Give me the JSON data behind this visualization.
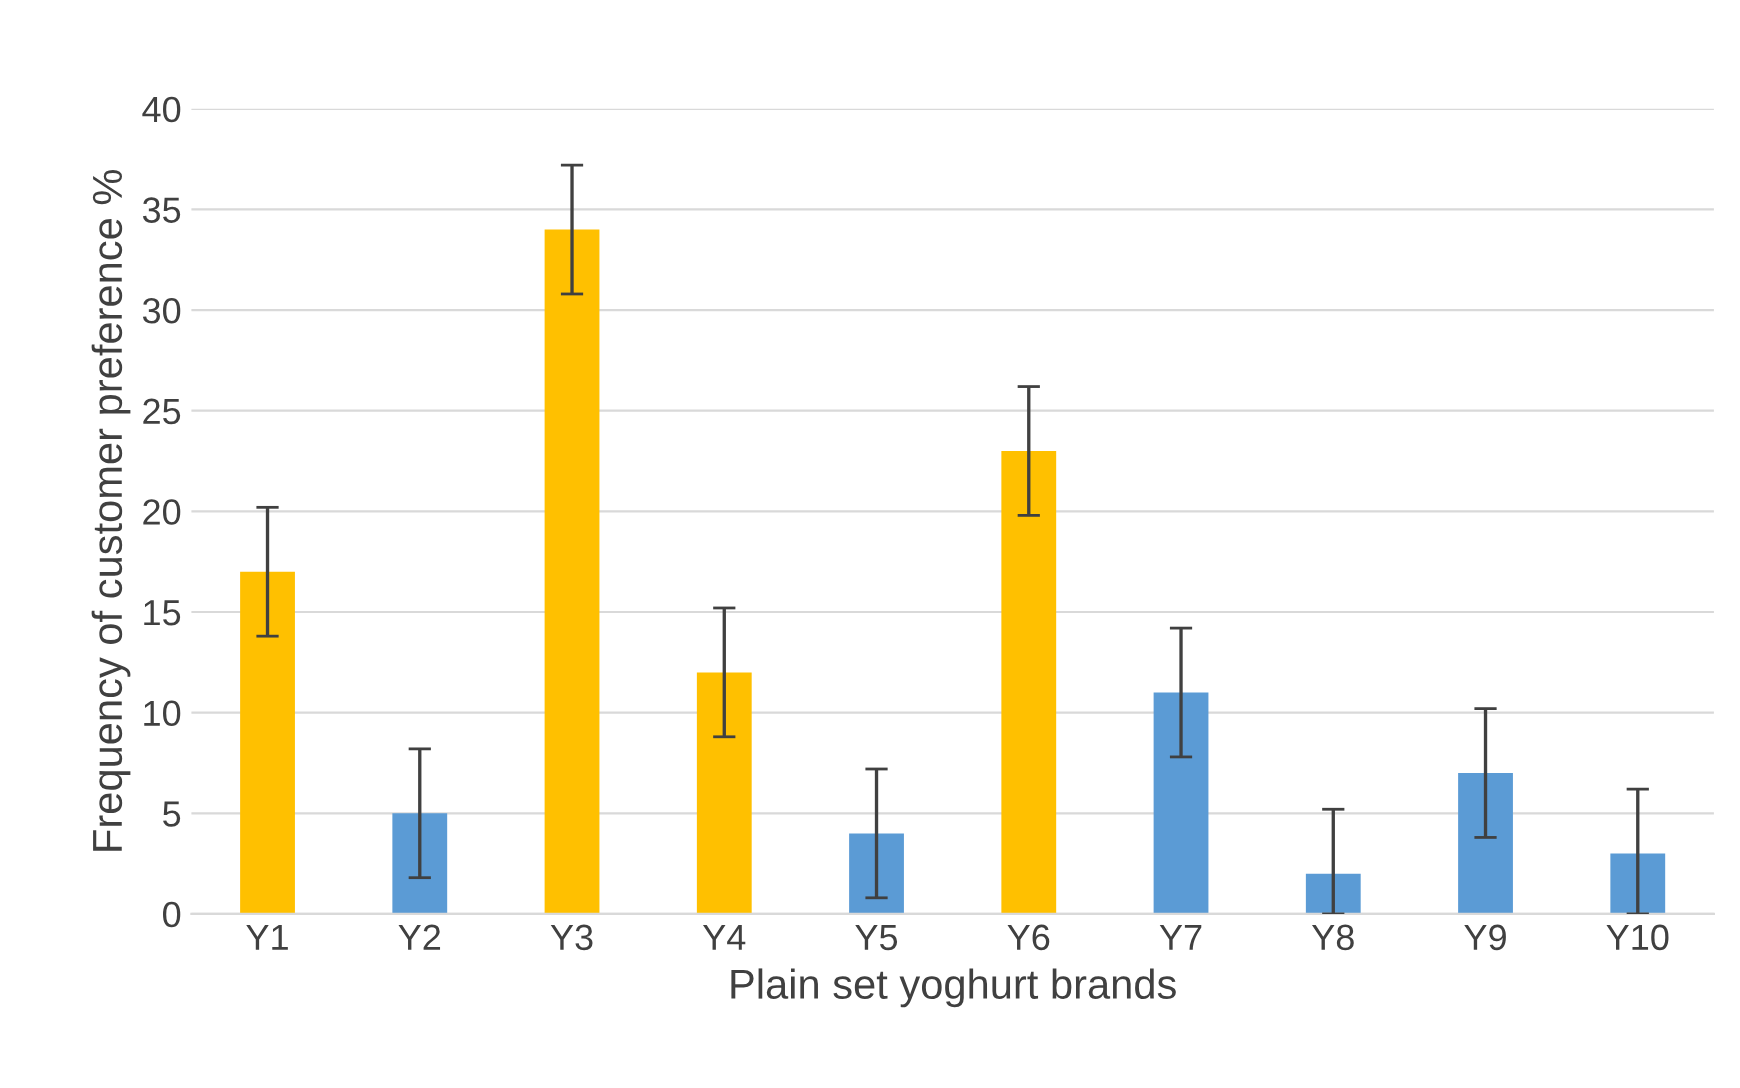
{
  "chart_data": {
    "type": "bar",
    "xlabel": "Plain set yoghurt brands",
    "ylabel": "Frequency of customer preference %",
    "categories": [
      "Y1",
      "Y2",
      "Y3",
      "Y4",
      "Y5",
      "Y6",
      "Y7",
      "Y8",
      "Y9",
      "Y10"
    ],
    "values": [
      17,
      5,
      34,
      12,
      4,
      23,
      11,
      2,
      7,
      3
    ],
    "colors": [
      "#ffc000",
      "#5b9bd5",
      "#ffc000",
      "#ffc000",
      "#5b9bd5",
      "#ffc000",
      "#5b9bd5",
      "#5b9bd5",
      "#5b9bd5",
      "#5b9bd5"
    ],
    "errors": [
      3.2,
      3.2,
      3.2,
      3.2,
      3.2,
      3.2,
      3.2,
      [
        0,
        5.2
      ],
      3.2,
      [
        0,
        6.2
      ]
    ],
    "ylim": [
      0,
      40
    ],
    "yticks": [
      0,
      5,
      10,
      15,
      20,
      25,
      30,
      35,
      40
    ],
    "grid": "y"
  }
}
